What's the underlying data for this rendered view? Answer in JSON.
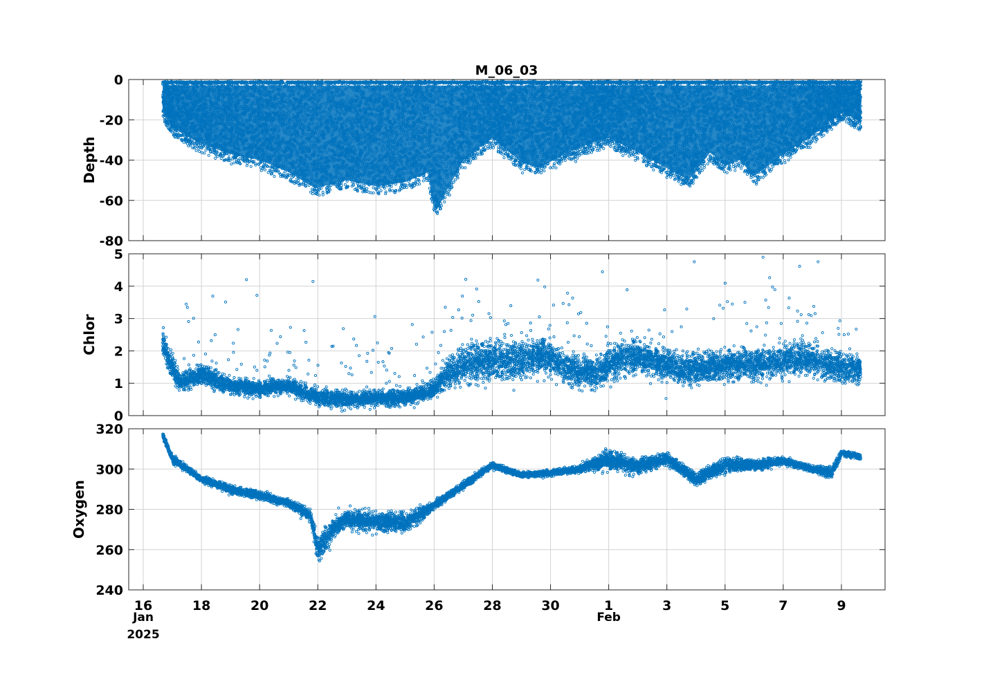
{
  "figure": {
    "title": "M_06_03",
    "x_ticks": [
      "16",
      "18",
      "20",
      "22",
      "24",
      "26",
      "28",
      "30",
      "1",
      "3",
      "5",
      "7",
      "9"
    ],
    "x_sublabels": [
      {
        "text": "Jan",
        "at": "16"
      },
      {
        "text": "2025",
        "at": "16"
      },
      {
        "text": "Feb",
        "at": "1"
      }
    ],
    "point_color": "#0072bd"
  },
  "chart_data": [
    {
      "type": "scatter",
      "ylabel": "Depth",
      "xlabel": "",
      "xlim": [
        "2025-01-15T12:00",
        "2025-02-10T12:00"
      ],
      "ylim": [
        -80,
        0
      ],
      "yticks": [
        "-80",
        "-60",
        "-40",
        "-20",
        "0"
      ],
      "grid": true,
      "envelope": {
        "x": [
          "2025-01-16T16:00",
          "2025-01-17T00:00",
          "2025-01-18T00:00",
          "2025-01-19T00:00",
          "2025-01-20T00:00",
          "2025-01-21T00:00",
          "2025-01-21T22:00",
          "2025-01-23T00:00",
          "2025-01-24T00:00",
          "2025-01-25T00:00",
          "2025-01-25T19:00",
          "2025-01-25T23:00",
          "2025-01-26T02:00",
          "2025-01-27T00:00",
          "2025-01-28T00:00",
          "2025-01-29T00:00",
          "2025-01-29T14:00",
          "2025-01-30T12:00",
          "2025-01-31T12:00",
          "2025-02-01T00:00",
          "2025-02-02T00:00",
          "2025-02-03T00:00",
          "2025-02-03T18:00",
          "2025-02-04T12:00",
          "2025-02-05T00:00",
          "2025-02-05T12:00",
          "2025-02-06T00:00",
          "2025-02-07T00:00",
          "2025-02-08T00:00",
          "2025-02-09T00:00",
          "2025-02-09T16:00"
        ],
        "top": [
          0,
          -1,
          -1,
          -1,
          -1,
          -1,
          -1,
          -1,
          -1,
          -1,
          -1,
          -1,
          -1,
          -1,
          -1,
          -1,
          -1,
          -1,
          -1,
          -1,
          -1,
          -1,
          -1,
          -1,
          -1,
          -1,
          -1,
          -1,
          -1,
          -1,
          -1
        ],
        "bottom": [
          -20,
          -28,
          -36,
          -41,
          -44,
          -50,
          -58,
          -54,
          -57,
          -55,
          -50,
          -66,
          -69,
          -44,
          -33,
          -45,
          -48,
          -41,
          -35,
          -33,
          -40,
          -48,
          -54,
          -40,
          -47,
          -44,
          -52,
          -41,
          -32,
          -20,
          -25
        ]
      }
    },
    {
      "type": "scatter",
      "ylabel": "Chlor",
      "xlabel": "",
      "xlim": [
        "2025-01-15T12:00",
        "2025-02-10T12:00"
      ],
      "ylim": [
        0,
        5
      ],
      "yticks": [
        "0",
        "1",
        "2",
        "3",
        "4",
        "5"
      ],
      "grid": true,
      "trend": {
        "x": [
          "2025-01-16T16:00",
          "2025-01-16T20:00",
          "2025-01-17T06:00",
          "2025-01-18T00:00",
          "2025-01-19T00:00",
          "2025-01-20T00:00",
          "2025-01-21T00:00",
          "2025-01-22T00:00",
          "2025-01-23T00:00",
          "2025-01-24T00:00",
          "2025-01-25T00:00",
          "2025-01-26T00:00",
          "2025-01-26T12:00",
          "2025-01-27T00:00",
          "2025-01-28T00:00",
          "2025-01-29T00:00",
          "2025-01-29T18:00",
          "2025-01-30T12:00",
          "2025-01-31T12:00",
          "2025-02-01T12:00",
          "2025-02-02T12:00",
          "2025-02-03T12:00",
          "2025-02-04T12:00",
          "2025-02-05T12:00",
          "2025-02-06T12:00",
          "2025-02-07T12:00",
          "2025-02-08T12:00",
          "2025-02-09T16:00"
        ],
        "y": [
          2.3,
          1.8,
          1.0,
          1.3,
          0.9,
          0.85,
          0.9,
          0.55,
          0.5,
          0.55,
          0.55,
          0.8,
          1.3,
          1.6,
          1.7,
          1.7,
          1.9,
          1.5,
          1.3,
          1.8,
          1.7,
          1.4,
          1.5,
          1.6,
          1.6,
          1.8,
          1.6,
          1.4
        ],
        "spread": [
          0.5,
          0.4,
          0.3,
          0.3,
          0.25,
          0.25,
          0.25,
          0.25,
          0.25,
          0.25,
          0.25,
          0.3,
          0.5,
          0.6,
          0.6,
          0.6,
          0.5,
          0.5,
          0.5,
          0.6,
          0.5,
          0.5,
          0.5,
          0.5,
          0.5,
          0.5,
          0.5,
          0.5
        ]
      }
    },
    {
      "type": "scatter",
      "ylabel": "Oxygen",
      "xlabel": "",
      "xlim": [
        "2025-01-15T12:00",
        "2025-02-10T12:00"
      ],
      "ylim": [
        240,
        320
      ],
      "yticks": [
        "240",
        "260",
        "280",
        "300",
        "320"
      ],
      "grid": true,
      "trend": {
        "x": [
          "2025-01-16T16:00",
          "2025-01-17T00:00",
          "2025-01-18T00:00",
          "2025-01-19T00:00",
          "2025-01-20T00:00",
          "2025-01-21T00:00",
          "2025-01-21T18:00",
          "2025-01-22T00:00",
          "2025-01-22T12:00",
          "2025-01-23T00:00",
          "2025-01-24T00:00",
          "2025-01-25T00:00",
          "2025-01-26T00:00",
          "2025-01-27T00:00",
          "2025-01-28T00:00",
          "2025-01-29T00:00",
          "2025-01-30T00:00",
          "2025-01-31T00:00",
          "2025-02-01T00:00",
          "2025-02-02T00:00",
          "2025-02-03T00:00",
          "2025-02-04T00:00",
          "2025-02-05T00:00",
          "2025-02-06T00:00",
          "2025-02-07T00:00",
          "2025-02-08T00:00",
          "2025-02-08T16:00",
          "2025-02-09T00:00",
          "2025-02-09T16:00"
        ],
        "y": [
          317,
          305,
          295,
          290,
          287,
          283,
          277,
          260,
          270,
          275,
          274,
          273,
          282,
          292,
          302,
          297,
          298,
          300,
          305,
          301,
          305,
          295,
          302,
          302,
          304,
          300,
          298,
          308,
          306
        ],
        "spread": [
          1.5,
          2,
          1.5,
          2,
          2,
          2,
          3,
          6,
          5,
          4,
          5,
          5,
          2,
          2,
          1.5,
          1.5,
          1.5,
          1.5,
          5,
          4,
          3,
          3,
          4,
          3,
          2,
          1.5,
          3,
          1.5,
          1.5
        ]
      }
    }
  ]
}
